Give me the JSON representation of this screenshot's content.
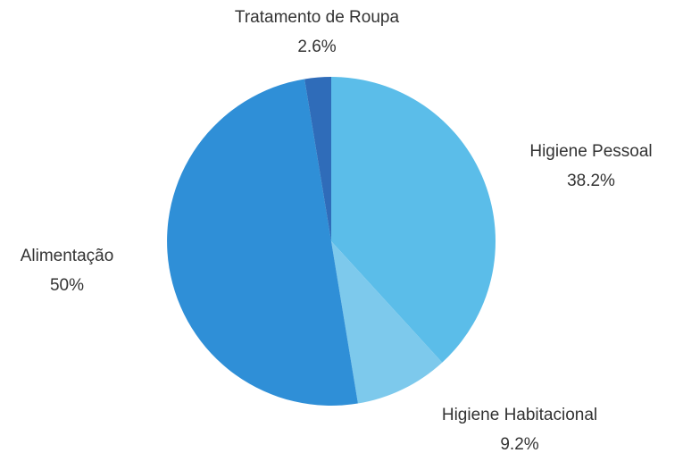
{
  "chart_data": {
    "type": "pie",
    "categories": [
      "Higiene Pessoal",
      "Higiene Habitacional",
      "Alimentação",
      "Tratamento de Roupa"
    ],
    "values": [
      38.2,
      9.2,
      50,
      2.6
    ],
    "value_labels": [
      "38.2%",
      "9.2%",
      "50%",
      "2.6%"
    ],
    "colors": [
      "#5bbde9",
      "#7dc9ec",
      "#2f8fd7",
      "#2f6cb9"
    ]
  }
}
